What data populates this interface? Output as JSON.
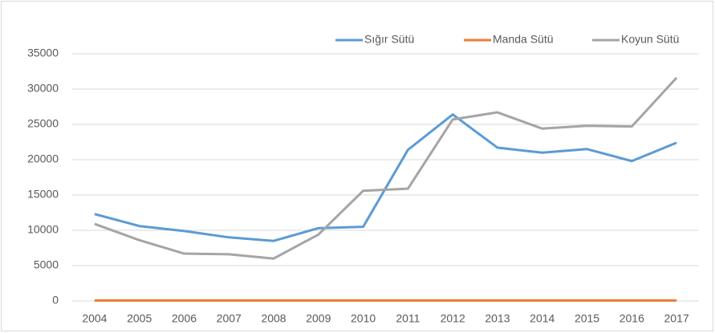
{
  "chart_data": {
    "type": "line",
    "categories": [
      "2004",
      "2005",
      "2006",
      "2007",
      "2008",
      "2009",
      "2010",
      "2011",
      "2012",
      "2013",
      "2014",
      "2015",
      "2016",
      "2017"
    ],
    "series": [
      {
        "name": "Sığır Sütü",
        "color": "#5b9bd5",
        "values": [
          12300,
          10600,
          9900,
          9000,
          8500,
          10300,
          10500,
          21400,
          26400,
          21700,
          21000,
          21500,
          19800,
          22400
        ]
      },
      {
        "name": "Manda Sütü",
        "color": "#ed7d31",
        "values": [
          50,
          50,
          50,
          50,
          50,
          50,
          50,
          50,
          50,
          50,
          50,
          50,
          50,
          50
        ]
      },
      {
        "name": "Koyun Sütü",
        "color": "#a5a5a5",
        "values": [
          10900,
          8600,
          6700,
          6600,
          6000,
          9400,
          15600,
          15900,
          25700,
          26700,
          24400,
          24800,
          24700,
          31600
        ]
      }
    ],
    "ylim": [
      0,
      35000
    ],
    "yticks": [
      0,
      5000,
      10000,
      15000,
      20000,
      25000,
      30000,
      35000
    ],
    "grid": true,
    "legend": "top-right"
  }
}
